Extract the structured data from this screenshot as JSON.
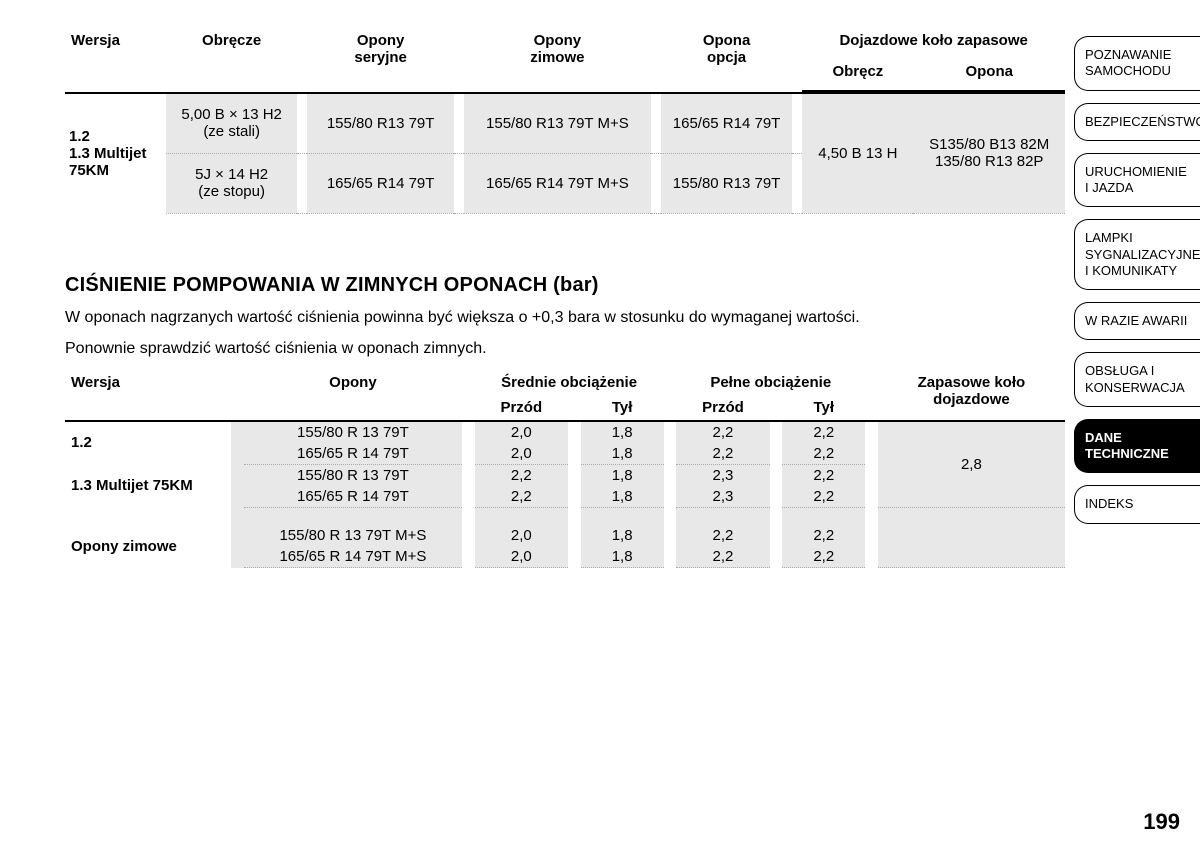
{
  "table1": {
    "headers": {
      "wersja": "Wersja",
      "obrecze": "Obręcze",
      "opony_seryjne": "Opony\nseryjne",
      "opony_zimowe": "Opony\nzimowe",
      "opona_opcja": "Opona\nopcja",
      "dojazdowe": "Dojazdowe koło zapasowe",
      "dojazdowe_obrecz": "Obręcz",
      "dojazdowe_opona": "Opona"
    },
    "version_block": "1.2\n1.3 Multijet 75KM",
    "rows": [
      {
        "obrecze": "5,00 B × 13 H2\n(ze stali)",
        "seryjne": "155/80 R13 79T",
        "zimowe": "155/80 R13 79T M+S",
        "opcja": "165/65 R14 79T"
      },
      {
        "obrecze": "5J × 14 H2\n(ze stopu)",
        "seryjne": "165/65 R14 79T",
        "zimowe": "165/65 R14 79T M+S",
        "opcja": "155/80 R13 79T"
      }
    ],
    "doj_obrecz": "4,50 B 13 H",
    "doj_opona": "S135/80 B13 82M\n135/80 R13 82P"
  },
  "section": {
    "title": "CIŚNIENIE POMPOWANIA W ZIMNYCH OPONACH (bar)",
    "p1": "W oponach nagrzanych wartość ciśnienia powinna być większa o +0,3 bara w stosunku do wymaganej wartości.",
    "p2": "Ponownie sprawdzić wartość ciśnienia w oponach zimnych."
  },
  "table2": {
    "headers": {
      "wersja": "Wersja",
      "opony": "Opony",
      "srednie": "Średnie obciążenie",
      "pelne": "Pełne obciążenie",
      "zapas": "Zapasowe koło\ndojazdowe",
      "przod": "Przód",
      "tyl": "Tył"
    },
    "groups": [
      {
        "version": "1.2",
        "rows": [
          {
            "opona": "155/80 R 13 79T",
            "sp": "2,0",
            "st": "1,8",
            "pp": "2,2",
            "pt": "2,2"
          },
          {
            "opona": "165/65 R 14 79T",
            "sp": "2,0",
            "st": "1,8",
            "pp": "2,2",
            "pt": "2,2"
          }
        ]
      },
      {
        "version": "1.3 Multijet 75KM",
        "rows": [
          {
            "opona": "155/80 R 13 79T",
            "sp": "2,2",
            "st": "1,8",
            "pp": "2,3",
            "pt": "2,2"
          },
          {
            "opona": "165/65 R 14 79T",
            "sp": "2,2",
            "st": "1,8",
            "pp": "2,3",
            "pt": "2,2"
          }
        ]
      },
      {
        "version": "Opony zimowe",
        "rows": [
          {
            "opona": "155/80 R 13 79T M+S",
            "sp": "2,0",
            "st": "1,8",
            "pp": "2,2",
            "pt": "2,2"
          },
          {
            "opona": "165/65 R 14 79T M+S",
            "sp": "2,0",
            "st": "1,8",
            "pp": "2,2",
            "pt": "2,2"
          }
        ]
      }
    ],
    "zapas_value": "2,8"
  },
  "tabs": [
    {
      "label": "POZNAWANIE SAMOCHODU",
      "active": false
    },
    {
      "label": "BEZPIECZEŃSTWO",
      "active": false
    },
    {
      "label": "URUCHOMIENIE I JAZDA",
      "active": false
    },
    {
      "label": "LAMPKI SYGNALIZACYJNE I KOMUNIKATY",
      "active": false
    },
    {
      "label": "W RAZIE AWARII",
      "active": false
    },
    {
      "label": "OBSŁUGA I KONSERWACJA",
      "active": false
    },
    {
      "label": "DANE TECHNICZNE",
      "active": true
    },
    {
      "label": "INDEKS",
      "active": false
    }
  ],
  "page_number": "199"
}
